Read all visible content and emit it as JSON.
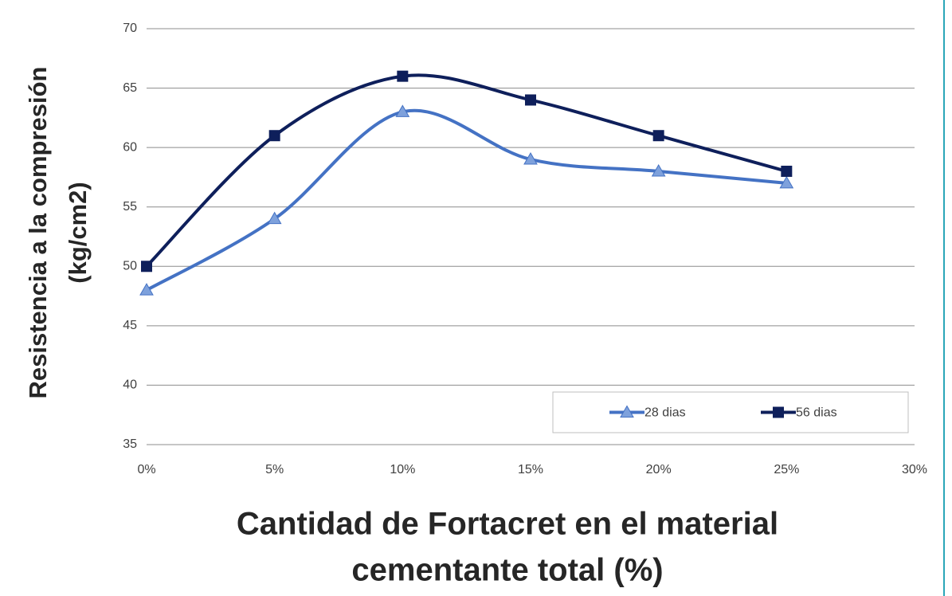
{
  "chart_data": {
    "type": "line",
    "y_label": [
      "Resistencia a la compresión",
      "(kg/cm2)"
    ],
    "x_label": [
      "Cantidad de Fortacret en el material",
      "cementante total (%)"
    ],
    "x": [
      0,
      5,
      10,
      15,
      20,
      25
    ],
    "series": [
      {
        "name": "28 dias",
        "color": "#4472c4",
        "marker": "triangle",
        "values": [
          48,
          54,
          63,
          59,
          58,
          57
        ]
      },
      {
        "name": "56 dias",
        "color": "#0e1f5b",
        "marker": "square",
        "values": [
          50,
          61,
          66,
          64,
          61,
          58
        ]
      }
    ],
    "xlim": [
      0,
      30
    ],
    "xticks": [
      {
        "value": 0,
        "label": "0%"
      },
      {
        "value": 5,
        "label": "5%"
      },
      {
        "value": 10,
        "label": "10%"
      },
      {
        "value": 15,
        "label": "15%"
      },
      {
        "value": 20,
        "label": "20%"
      },
      {
        "value": 25,
        "label": "25%"
      },
      {
        "value": 30,
        "label": "30%"
      }
    ],
    "ylim": [
      35,
      70
    ],
    "yticks": [
      35,
      40,
      45,
      50,
      55,
      60,
      65,
      70
    ],
    "grid": true,
    "smooth": true,
    "legend": "bottom-right"
  }
}
